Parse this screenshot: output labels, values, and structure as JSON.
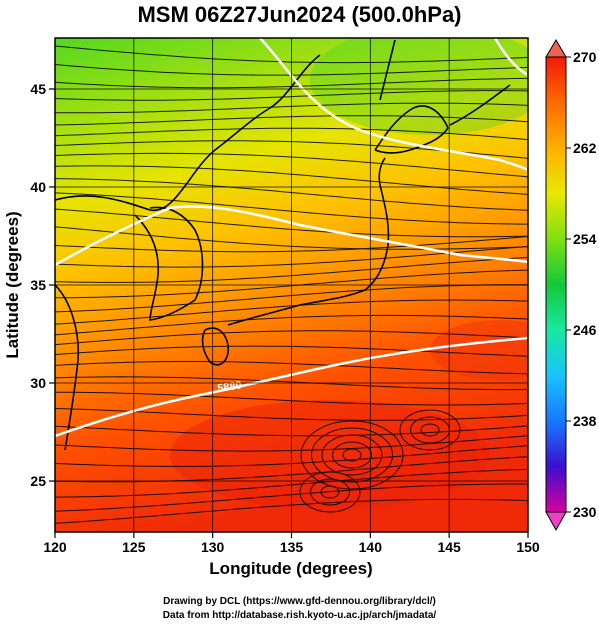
{
  "title": "MSM 06Z27Jun2024 (500.0hPa)",
  "map": {
    "x_axis_label": "Longitude (degrees)",
    "y_axis_label": "Latitude  (degrees)",
    "lon_range": [
      120,
      150
    ],
    "lat_range": [
      22.4,
      47.6
    ],
    "lon_ticks": [
      120,
      125,
      130,
      135,
      140,
      145,
      150
    ],
    "lat_ticks": [
      25,
      30,
      35,
      40,
      45
    ],
    "grid": true,
    "contour_label": "5880"
  },
  "colorbar": {
    "min": 230,
    "max": 270,
    "tick_labels": [
      "270",
      "262",
      "254",
      "246",
      "238",
      "230"
    ],
    "tick_values": [
      270,
      262,
      254,
      246,
      238,
      230
    ],
    "colors": [
      "#d8009e",
      "#3a0fd0",
      "#1878ff",
      "#19c3ff",
      "#18e8a0",
      "#14c83a",
      "#80e010",
      "#e8e800",
      "#ffb000",
      "#ff6a00",
      "#f21a0a"
    ]
  },
  "credits": {
    "line1": "Drawing by DCL (https://www.gfd-dennou.org/library/dcl/)",
    "line2": "Data from http://database.rish.kyoto-u.ac.jp/arch/jmadata/"
  }
}
